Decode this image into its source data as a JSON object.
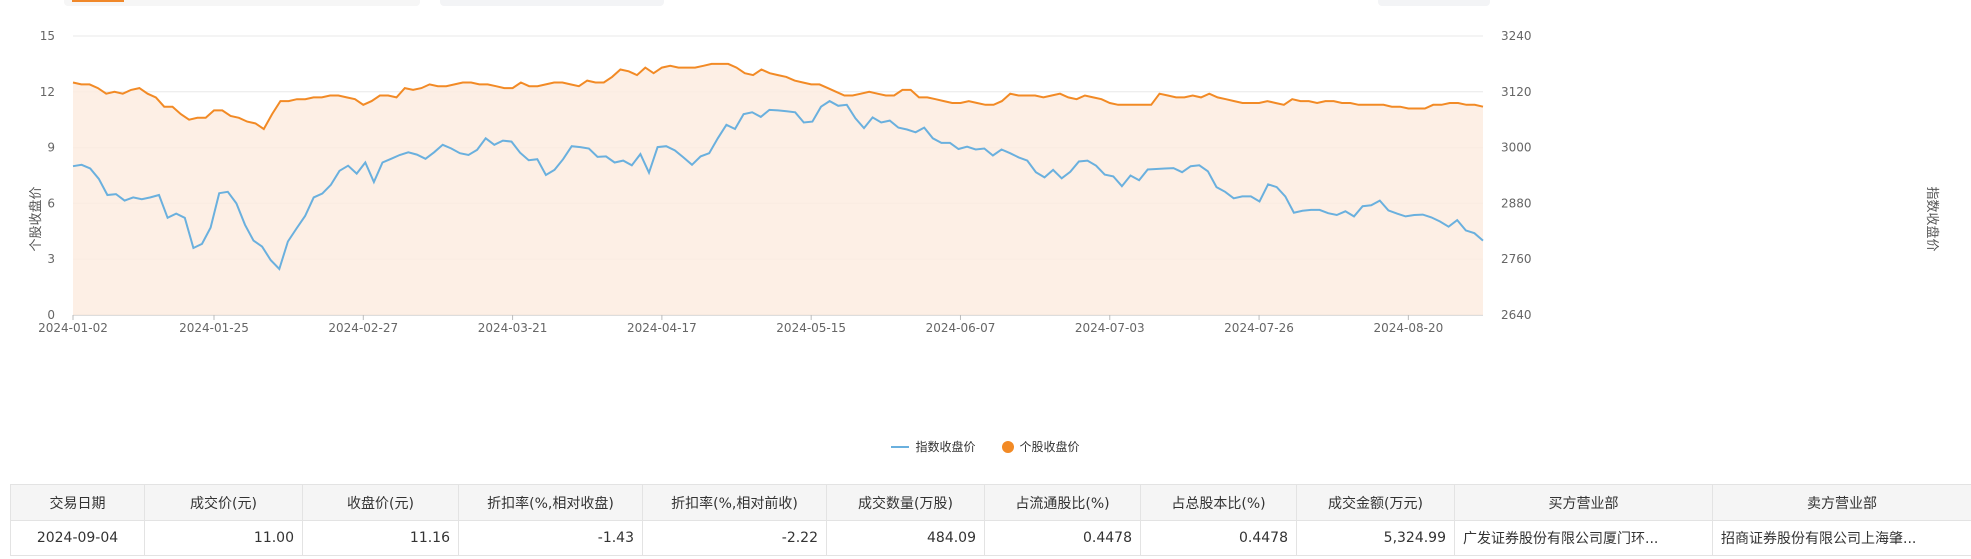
{
  "chart_data": {
    "type": "line",
    "x_ticks": [
      "2024-01-02",
      "2024-01-25",
      "2024-02-27",
      "2024-03-21",
      "2024-04-17",
      "2024-05-15",
      "2024-06-07",
      "2024-07-03",
      "2024-07-26",
      "2024-08-20"
    ],
    "y_left": {
      "label": "个股收盘价",
      "min": 0,
      "max": 15,
      "ticks": [
        "0",
        "3",
        "6",
        "9",
        "12",
        "15"
      ]
    },
    "y_right": {
      "label": "指数收盘价",
      "min": 2640,
      "max": 3240,
      "ticks": [
        "2640",
        "2760",
        "2880",
        "3000",
        "3120",
        "3240"
      ]
    },
    "grid": true,
    "legend_position": "bottom",
    "series": [
      {
        "name": "指数收盘价",
        "axis": "right",
        "color": "#6ab0de",
        "values": [
          2960,
          2963,
          2955,
          2933,
          2898,
          2900,
          2886,
          2893,
          2889,
          2893,
          2898,
          2849,
          2858,
          2849,
          2784,
          2793,
          2828,
          2902,
          2905,
          2880,
          2834,
          2800,
          2787,
          2758,
          2739,
          2798,
          2826,
          2853,
          2893,
          2901,
          2920,
          2950,
          2961,
          2944,
          2968,
          2926,
          2968,
          2976,
          2984,
          2990,
          2985,
          2976,
          2990,
          3006,
          2998,
          2988,
          2984,
          2995,
          3020,
          3006,
          3015,
          3013,
          2989,
          2973,
          2975,
          2941,
          2952,
          2975,
          3003,
          3001,
          2998,
          2980,
          2981,
          2968,
          2972,
          2962,
          2986,
          2946,
          3001,
          3003,
          2994,
          2979,
          2963,
          2981,
          2988,
          3020,
          3049,
          3040,
          3072,
          3076,
          3066,
          3081,
          3080,
          3078,
          3076,
          3054,
          3056,
          3088,
          3100,
          3090,
          3092,
          3063,
          3042,
          3065,
          3054,
          3058,
          3043,
          3039,
          3033,
          3043,
          3020,
          3010,
          3010,
          2997,
          3002,
          2996,
          2998,
          2983,
          2996,
          2988,
          2979,
          2972,
          2947,
          2936,
          2952,
          2934,
          2948,
          2970,
          2972,
          2961,
          2942,
          2938,
          2917,
          2940,
          2930,
          2953,
          2954,
          2955,
          2956,
          2947,
          2960,
          2962,
          2949,
          2915,
          2905,
          2891,
          2895,
          2895,
          2884,
          2921,
          2915,
          2895,
          2860,
          2864,
          2866,
          2866,
          2859,
          2855,
          2863,
          2852,
          2874,
          2876,
          2886,
          2865,
          2858,
          2852,
          2855,
          2856,
          2850,
          2841,
          2830,
          2844,
          2822,
          2816,
          2800
        ]
      },
      {
        "name": "个股收盘价",
        "axis": "left",
        "color": "#f28a25",
        "values": [
          12.5,
          12.4,
          12.4,
          12.2,
          11.9,
          12.0,
          11.9,
          12.1,
          12.2,
          11.9,
          11.7,
          11.2,
          11.2,
          10.8,
          10.5,
          10.6,
          10.6,
          11.0,
          11.0,
          10.7,
          10.6,
          10.4,
          10.3,
          10.0,
          10.8,
          11.5,
          11.5,
          11.6,
          11.6,
          11.7,
          11.7,
          11.8,
          11.8,
          11.7,
          11.6,
          11.3,
          11.5,
          11.8,
          11.8,
          11.7,
          12.2,
          12.1,
          12.2,
          12.4,
          12.3,
          12.3,
          12.4,
          12.5,
          12.5,
          12.4,
          12.4,
          12.3,
          12.2,
          12.2,
          12.5,
          12.3,
          12.3,
          12.4,
          12.5,
          12.5,
          12.4,
          12.3,
          12.6,
          12.5,
          12.5,
          12.8,
          13.2,
          13.1,
          12.9,
          13.3,
          13.0,
          13.3,
          13.4,
          13.3,
          13.3,
          13.3,
          13.4,
          13.5,
          13.5,
          13.5,
          13.3,
          13.0,
          12.9,
          13.2,
          13.0,
          12.9,
          12.8,
          12.6,
          12.5,
          12.4,
          12.4,
          12.2,
          12.0,
          11.8,
          11.8,
          11.9,
          12.0,
          11.9,
          11.8,
          11.8,
          12.1,
          12.1,
          11.7,
          11.7,
          11.6,
          11.5,
          11.4,
          11.4,
          11.5,
          11.4,
          11.3,
          11.3,
          11.5,
          11.9,
          11.8,
          11.8,
          11.8,
          11.7,
          11.8,
          11.9,
          11.7,
          11.6,
          11.8,
          11.7,
          11.6,
          11.4,
          11.3,
          11.3,
          11.3,
          11.3,
          11.3,
          11.9,
          11.8,
          11.7,
          11.7,
          11.8,
          11.7,
          11.9,
          11.7,
          11.6,
          11.5,
          11.4,
          11.4,
          11.4,
          11.5,
          11.4,
          11.3,
          11.6,
          11.5,
          11.5,
          11.4,
          11.5,
          11.5,
          11.4,
          11.4,
          11.3,
          11.3,
          11.3,
          11.3,
          11.2,
          11.2,
          11.1,
          11.1,
          11.1,
          11.3,
          11.3,
          11.4,
          11.4,
          11.3,
          11.3,
          11.2
        ]
      }
    ]
  },
  "table": {
    "headers": [
      "交易日期",
      "成交价(元)",
      "收盘价(元)",
      "折扣率(%,相对收盘)",
      "折扣率(%,相对前收)",
      "成交数量(万股)",
      "占流通股比(%)",
      "占总股本比(%)",
      "成交金额(万元)",
      "买方营业部",
      "卖方营业部"
    ],
    "rows": [
      [
        "2024-09-04",
        "11.00",
        "11.16",
        "-1.43",
        "-2.22",
        "484.09",
        "0.4478",
        "0.4478",
        "5,324.99",
        "广发证券股份有限公司厦门环...",
        "招商证券股份有限公司上海肇..."
      ]
    ]
  }
}
